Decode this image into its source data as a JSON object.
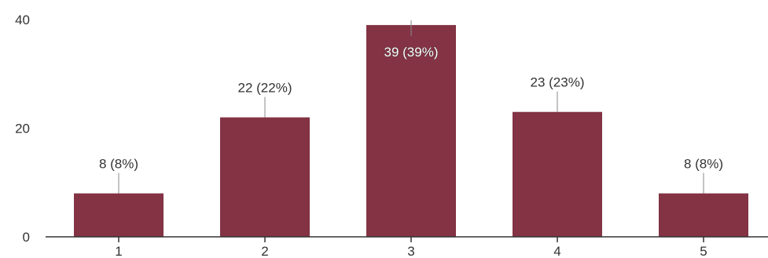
{
  "chart_data": {
    "type": "bar",
    "categories": [
      "1",
      "2",
      "3",
      "4",
      "5"
    ],
    "values": [
      8,
      22,
      39,
      23,
      8
    ],
    "data_labels": [
      "8 (8%)",
      "22 (22%)",
      "39 (39%)",
      "23 (23%)",
      "8 (8%)"
    ],
    "y_ticks": [
      "0",
      "20",
      "40"
    ],
    "ylim": [
      0,
      40
    ],
    "title": "",
    "xlabel": "",
    "ylabel": "",
    "grid": false,
    "legend": "none",
    "bar_color": "#833344"
  }
}
